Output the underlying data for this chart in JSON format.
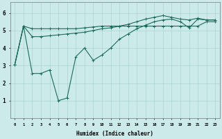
{
  "xlabel": "Humidex (Indice chaleur)",
  "bg_color": "#cceaea",
  "line_color": "#1a6b5a",
  "grid_color": "#aad4d4",
  "xlim": [
    -0.5,
    23.5
  ],
  "ylim": [
    0,
    6.6
  ],
  "xtick_labels": [
    "0",
    "1",
    "2",
    "3",
    "4",
    "5",
    "6",
    "7",
    "8",
    "9",
    "10",
    "11",
    "12",
    "13",
    "14",
    "15",
    "16",
    "17",
    "18",
    "19",
    "20",
    "21",
    "22",
    "23"
  ],
  "ytick_vals": [
    1,
    2,
    3,
    4,
    5,
    6
  ],
  "line1_x": [
    0,
    1,
    2,
    3,
    4,
    5,
    6,
    7,
    8,
    9,
    10,
    11,
    12,
    13,
    14,
    15,
    16,
    17,
    18,
    19,
    20,
    21,
    22,
    23
  ],
  "line1_y": [
    3.05,
    5.25,
    5.1,
    5.1,
    5.1,
    5.1,
    5.1,
    5.1,
    5.15,
    5.2,
    5.25,
    5.25,
    5.25,
    5.25,
    5.25,
    5.25,
    5.25,
    5.25,
    5.25,
    5.25,
    5.25,
    5.25,
    5.5,
    5.5
  ],
  "line2_x": [
    0,
    1,
    2,
    3,
    4,
    5,
    6,
    7,
    8,
    9,
    10,
    11,
    12,
    13,
    14,
    15,
    16,
    17,
    18,
    19,
    20,
    21,
    22,
    23
  ],
  "line2_y": [
    3.05,
    5.25,
    4.65,
    4.65,
    4.7,
    4.75,
    4.8,
    4.85,
    4.9,
    5.0,
    5.1,
    5.15,
    5.25,
    5.35,
    5.5,
    5.65,
    5.75,
    5.85,
    5.75,
    5.65,
    5.6,
    5.7,
    5.6,
    5.6
  ],
  "line3_x": [
    0,
    1,
    2,
    3,
    4,
    5,
    6,
    7,
    8,
    9,
    10,
    11,
    12,
    13,
    14,
    15,
    16,
    17,
    18,
    19,
    20,
    21,
    22,
    23
  ],
  "line3_y": [
    3.05,
    5.25,
    2.55,
    2.55,
    2.75,
    1.0,
    1.15,
    3.5,
    4.0,
    3.3,
    3.6,
    4.0,
    4.5,
    4.8,
    5.1,
    5.3,
    5.5,
    5.6,
    5.65,
    5.5,
    5.15,
    5.65,
    5.6,
    5.6
  ]
}
